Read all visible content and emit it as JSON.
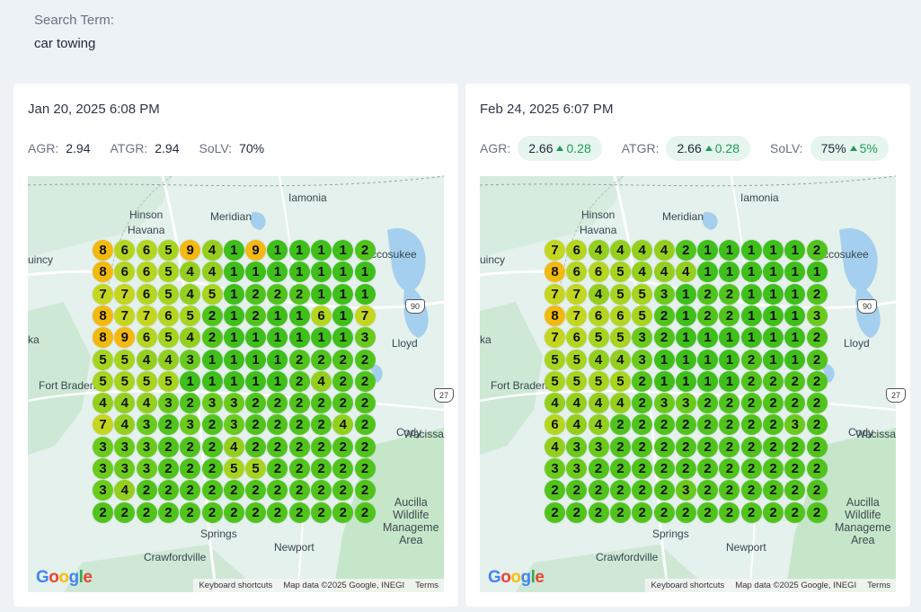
{
  "search": {
    "label": "Search Term:",
    "term": "car towing"
  },
  "colors": {
    "1": "#3fbf1a",
    "2": "#50c41b",
    "3": "#6acb1c",
    "4": "#94cf1e",
    "5": "#a7d41f",
    "6": "#b4d620",
    "7": "#c5d620",
    "8": "#f2b90f",
    "9": "#f4b912"
  },
  "map_places": {
    "iamonia": "Iamonia",
    "hinson": "Hinson",
    "havana": "Havana",
    "meridian": "Meridian",
    "quincy": "uincy",
    "miccosukee": "ccosukee",
    "lloyd": "Lloyd",
    "fort_braden": "Fort Braden",
    "kat": "ka",
    "wacissa": "Wacissa",
    "cody": "Cody",
    "aucilla": "Aucilla\nWildlife\nManageme\nArea",
    "wakulla": "Springs",
    "newport": "Newport",
    "crawfordville": "Crawfordville",
    "route90": "90",
    "route27": "27"
  },
  "attribution": {
    "shortcuts": "Keyboard shortcuts",
    "mapdata": "Map data ©2025 Google, INEGI",
    "terms": "Terms"
  },
  "google_letters": [
    "G",
    "o",
    "o",
    "g",
    "l",
    "e"
  ],
  "scans": [
    {
      "date": "Jan 20, 2025 6:08 PM",
      "metrics": [
        {
          "label": "AGR:",
          "value": "2.94",
          "delta": ""
        },
        {
          "label": "ATGR:",
          "value": "2.94",
          "delta": ""
        },
        {
          "label": "SoLV:",
          "value": "70%",
          "delta": ""
        }
      ],
      "grid": [
        [
          8,
          6,
          6,
          5,
          9,
          4,
          1,
          9,
          1,
          1,
          1,
          1,
          2
        ],
        [
          8,
          6,
          6,
          5,
          4,
          4,
          1,
          1,
          1,
          1,
          1,
          1,
          1
        ],
        [
          7,
          7,
          6,
          5,
          4,
          5,
          1,
          2,
          2,
          2,
          1,
          1,
          1
        ],
        [
          8,
          7,
          7,
          6,
          5,
          2,
          1,
          2,
          1,
          1,
          6,
          1,
          7
        ],
        [
          8,
          9,
          6,
          5,
          4,
          2,
          1,
          1,
          1,
          1,
          1,
          1,
          3
        ],
        [
          5,
          5,
          4,
          4,
          3,
          1,
          1,
          1,
          1,
          2,
          2,
          2,
          2
        ],
        [
          5,
          5,
          5,
          5,
          1,
          1,
          1,
          1,
          1,
          2,
          4,
          2,
          2
        ],
        [
          4,
          4,
          4,
          3,
          2,
          3,
          3,
          2,
          2,
          2,
          2,
          2,
          2
        ],
        [
          7,
          4,
          3,
          2,
          3,
          2,
          3,
          2,
          2,
          2,
          2,
          4,
          2
        ],
        [
          3,
          3,
          3,
          2,
          2,
          2,
          4,
          2,
          2,
          2,
          2,
          2,
          2
        ],
        [
          3,
          3,
          3,
          2,
          2,
          2,
          5,
          5,
          2,
          2,
          2,
          2,
          2
        ],
        [
          3,
          4,
          2,
          2,
          2,
          2,
          2,
          2,
          2,
          2,
          2,
          2,
          2
        ],
        [
          2,
          2,
          2,
          2,
          2,
          2,
          2,
          2,
          2,
          2,
          2,
          2,
          2
        ]
      ]
    },
    {
      "date": "Feb 24, 2025 6:07 PM",
      "metrics": [
        {
          "label": "AGR:",
          "value": "2.66",
          "delta": "0.28"
        },
        {
          "label": "ATGR:",
          "value": "2.66",
          "delta": "0.28"
        },
        {
          "label": "SoLV:",
          "value": "75%",
          "delta": "5%"
        }
      ],
      "grid": [
        [
          7,
          6,
          4,
          4,
          4,
          4,
          2,
          1,
          1,
          1,
          1,
          1,
          2
        ],
        [
          8,
          6,
          6,
          5,
          4,
          4,
          4,
          1,
          1,
          1,
          1,
          1,
          1
        ],
        [
          7,
          7,
          4,
          5,
          5,
          3,
          1,
          2,
          2,
          1,
          1,
          1,
          2
        ],
        [
          8,
          7,
          6,
          6,
          5,
          2,
          1,
          2,
          2,
          1,
          1,
          1,
          3
        ],
        [
          7,
          6,
          5,
          5,
          3,
          2,
          1,
          1,
          1,
          1,
          1,
          1,
          2
        ],
        [
          5,
          5,
          4,
          4,
          3,
          1,
          1,
          1,
          1,
          2,
          1,
          1,
          2
        ],
        [
          5,
          5,
          5,
          5,
          2,
          1,
          1,
          1,
          1,
          2,
          2,
          2,
          2
        ],
        [
          4,
          4,
          4,
          4,
          2,
          3,
          3,
          2,
          2,
          2,
          2,
          2,
          2
        ],
        [
          6,
          4,
          4,
          2,
          2,
          2,
          2,
          2,
          2,
          2,
          2,
          3,
          2
        ],
        [
          4,
          3,
          3,
          2,
          2,
          2,
          2,
          2,
          2,
          2,
          2,
          2,
          2
        ],
        [
          3,
          3,
          2,
          2,
          2,
          2,
          2,
          2,
          2,
          2,
          2,
          2,
          2
        ],
        [
          2,
          2,
          2,
          2,
          2,
          2,
          3,
          2,
          2,
          2,
          2,
          2,
          2
        ],
        [
          2,
          2,
          2,
          2,
          2,
          2,
          2,
          2,
          2,
          2,
          2,
          2,
          2
        ]
      ]
    }
  ]
}
